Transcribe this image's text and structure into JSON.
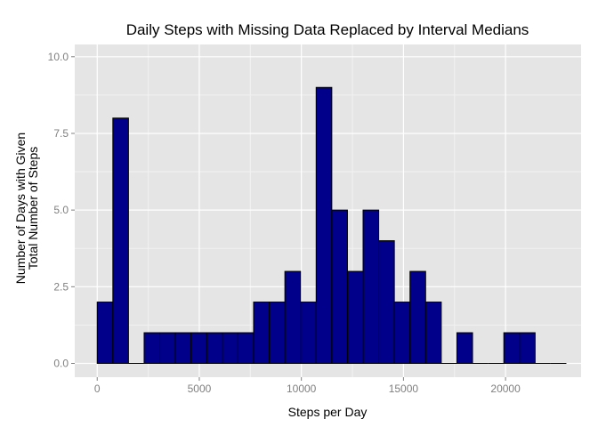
{
  "chart_data": {
    "type": "bar",
    "title": "Daily Steps with Missing Data Replaced by Interval Medians",
    "xlabel": "Steps per Day",
    "ylabel_lines": [
      "Number of Days with Given",
      "Total Number of Steps"
    ],
    "xlim": [
      -1100,
      23700
    ],
    "ylim": [
      -0.45,
      10.4
    ],
    "x_ticks": [
      0,
      5000,
      10000,
      15000,
      20000
    ],
    "x_tick_labels": [
      "0",
      "5000",
      "10000",
      "15000",
      "20000"
    ],
    "y_ticks": [
      0.0,
      2.5,
      5.0,
      7.5,
      10.0
    ],
    "y_tick_labels": [
      "0.0",
      "2.5",
      "5.0",
      "7.5",
      "10.0"
    ],
    "bin_width": 766,
    "bin_start": 0,
    "values": [
      2,
      8,
      0,
      1,
      1,
      1,
      1,
      1,
      1,
      1,
      2,
      2,
      3,
      2,
      9,
      5,
      3,
      5,
      4,
      2,
      3,
      2,
      0,
      1,
      0,
      0,
      1,
      1,
      0,
      0
    ],
    "grid": true,
    "colors": {
      "panel_background": "#e5e5e5",
      "grid_major": "#ffffff",
      "grid_minor": "#f2f2f2",
      "bar_fill": "#00008b",
      "bar_outline": "#000000",
      "tick_label": "#7f7f7f"
    }
  }
}
